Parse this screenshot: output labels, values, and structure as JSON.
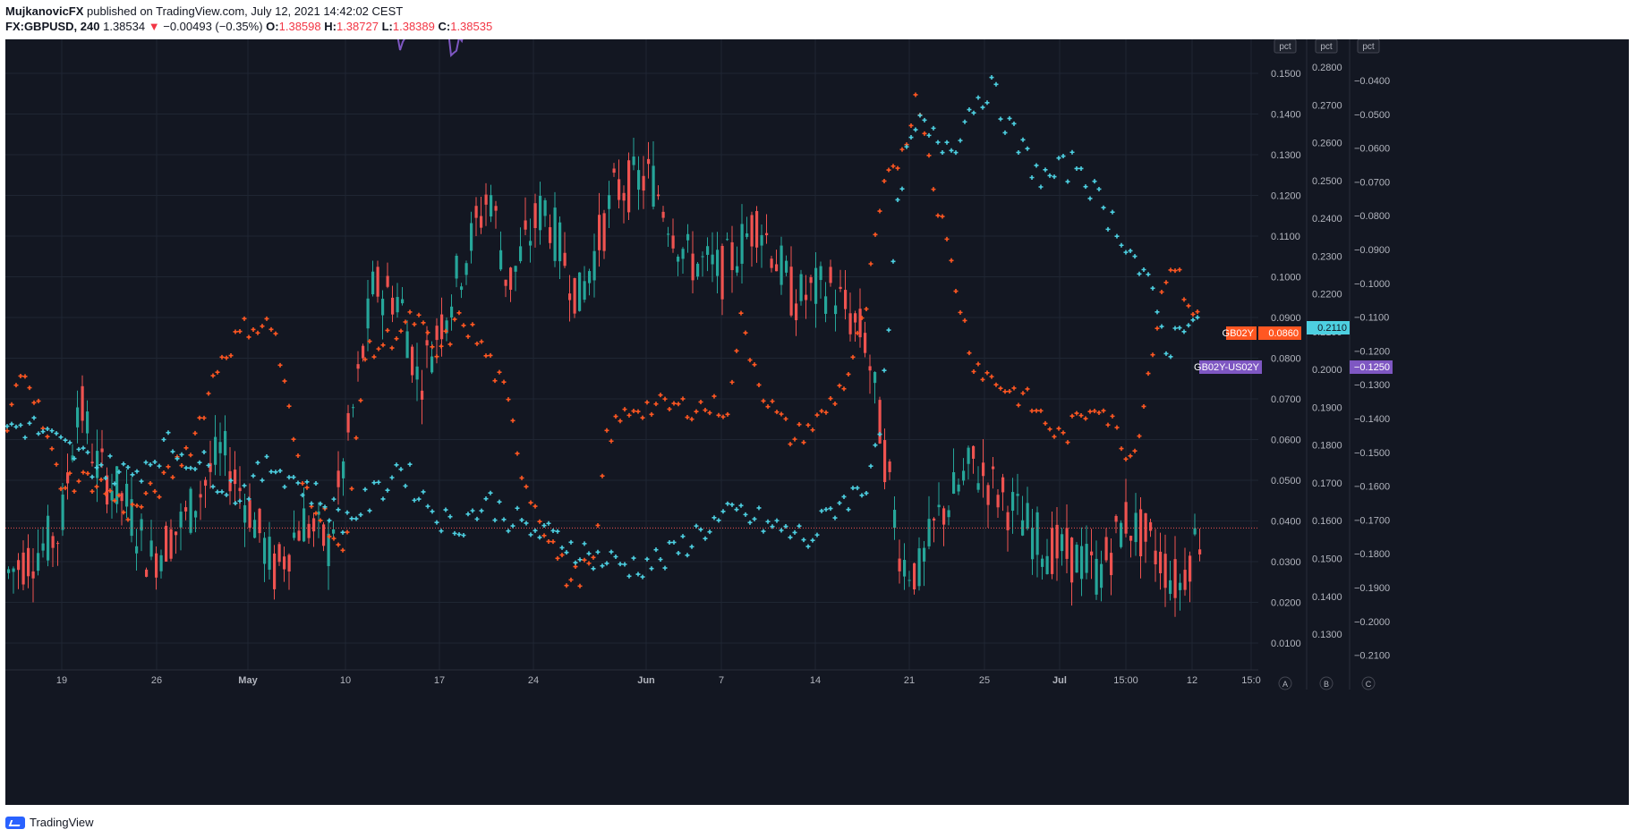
{
  "header": {
    "author": "MujkanovicFX",
    "published": "published on TradingView.com, July 12, 2021 14:42:02 CEST",
    "symbol": "FX:GBPUSD, 240",
    "price": "1.38534",
    "change": "−0.00493 (−0.35%)",
    "open_label": "O:",
    "open": "1.38598",
    "high_label": "H:",
    "high": "1.38727",
    "low_label": "L:",
    "low": "1.38389",
    "close_label": "C:",
    "close": "1.38535"
  },
  "footer": {
    "brand": "TradingView"
  },
  "colors": {
    "background": "#131722",
    "grid": "#1f2633",
    "up": "#26a69a",
    "down": "#ef5350",
    "spread": "#7e57c2",
    "gb": "#ff5722",
    "us": "#4dd0e1",
    "axis_text": "#b2b5be"
  },
  "chart_data": {
    "type": "candlestick",
    "x_ticks": [
      "19",
      "26",
      "May",
      "10",
      "17",
      "24",
      "Jun",
      "7",
      "14",
      "21",
      "25",
      "Jul",
      "15:00",
      "12",
      "15:0"
    ],
    "axis_a": {
      "unit": "pct",
      "ticks": [
        "0.1500",
        "0.1400",
        "0.1300",
        "0.1200",
        "0.1100",
        "0.1000",
        "0.0900",
        "0.0800",
        "0.0700",
        "0.0600",
        "0.0500",
        "0.0400",
        "0.0300",
        "0.0200",
        "0.0100"
      ],
      "corner": "A"
    },
    "axis_b": {
      "unit": "pct",
      "ticks": [
        "0.2800",
        "0.2700",
        "0.2600",
        "0.2500",
        "0.2400",
        "0.2300",
        "0.2200",
        "0.2100",
        "0.2000",
        "0.1900",
        "0.1800",
        "0.1700",
        "0.1600",
        "0.1500",
        "0.1400",
        "0.1300"
      ],
      "corner": "B"
    },
    "axis_c": {
      "unit": "pct",
      "ticks": [
        "−0.0400",
        "−0.0500",
        "−0.0600",
        "−0.0700",
        "−0.0800",
        "−0.0900",
        "−0.1000",
        "−0.1100",
        "−0.1200",
        "−0.1300",
        "−0.1400",
        "−0.1500",
        "−0.1600",
        "−0.1700",
        "−0.1800",
        "−0.1900",
        "−0.2000",
        "−0.2100"
      ],
      "corner": "C"
    },
    "series": [
      {
        "name": "GB02Y",
        "value": "0.0860"
      },
      {
        "name": "US02Y",
        "value": "0.2110"
      },
      {
        "name": "GB02Y-US02Y",
        "value": "−0.1250"
      }
    ],
    "price_line": 1.38535,
    "price_range": [
      1.375,
      1.421
    ],
    "price_anchors": [
      [
        0,
        1.382
      ],
      [
        60,
        1.385
      ],
      [
        80,
        1.395
      ],
      [
        100,
        1.39
      ],
      [
        135,
        1.387
      ],
      [
        160,
        1.383
      ],
      [
        200,
        1.386
      ],
      [
        240,
        1.391
      ],
      [
        270,
        1.387
      ],
      [
        300,
        1.382
      ],
      [
        330,
        1.386
      ],
      [
        360,
        1.384
      ],
      [
        390,
        1.395
      ],
      [
        410,
        1.403
      ],
      [
        440,
        1.402
      ],
      [
        460,
        1.396
      ],
      [
        500,
        1.403
      ],
      [
        540,
        1.41
      ],
      [
        560,
        1.403
      ],
      [
        600,
        1.409
      ],
      [
        640,
        1.402
      ],
      [
        680,
        1.41
      ],
      [
        720,
        1.411
      ],
      [
        760,
        1.405
      ],
      [
        800,
        1.404
      ],
      [
        840,
        1.408
      ],
      [
        880,
        1.402
      ],
      [
        920,
        1.403
      ],
      [
        960,
        1.399
      ],
      [
        980,
        1.391
      ],
      [
        1000,
        1.383
      ],
      [
        1020,
        1.382
      ],
      [
        1040,
        1.386
      ],
      [
        1080,
        1.39
      ],
      [
        1120,
        1.387
      ],
      [
        1160,
        1.384
      ],
      [
        1200,
        1.383
      ],
      [
        1220,
        1.382
      ],
      [
        1250,
        1.386
      ],
      [
        1280,
        1.384
      ],
      [
        1310,
        1.381
      ],
      [
        1330,
        1.385
      ],
      [
        1340,
        1.384
      ]
    ],
    "spread_anchors": [
      [
        0,
        -0.11
      ],
      [
        15,
        -0.08
      ],
      [
        45,
        -0.13
      ],
      [
        60,
        -0.117
      ],
      [
        100,
        -0.11
      ],
      [
        160,
        -0.1
      ],
      [
        230,
        -0.1
      ],
      [
        270,
        -0.055
      ],
      [
        290,
        -0.08
      ],
      [
        300,
        -0.055
      ],
      [
        320,
        -0.1
      ],
      [
        350,
        -0.13
      ],
      [
        380,
        -0.11
      ],
      [
        400,
        -0.09
      ],
      [
        430,
        -0.055
      ],
      [
        440,
        -0.05
      ],
      [
        470,
        -0.07
      ],
      [
        490,
        -0.05
      ],
      [
        520,
        -0.06
      ],
      [
        550,
        -0.08
      ],
      [
        590,
        -0.11
      ],
      [
        620,
        -0.13
      ],
      [
        650,
        -0.09
      ],
      [
        690,
        -0.07
      ],
      [
        720,
        -0.08
      ],
      [
        760,
        -0.085
      ],
      [
        800,
        -0.09
      ],
      [
        820,
        -0.055
      ],
      [
        840,
        -0.08
      ],
      [
        880,
        -0.07
      ],
      [
        930,
        -0.07
      ],
      [
        960,
        -0.09
      ],
      [
        975,
        -0.08
      ],
      [
        990,
        -0.12
      ],
      [
        1010,
        -0.09
      ],
      [
        1040,
        -0.12
      ],
      [
        1060,
        -0.15
      ],
      [
        1080,
        -0.18
      ],
      [
        1100,
        -0.2
      ],
      [
        1140,
        -0.18
      ],
      [
        1170,
        -0.2
      ],
      [
        1200,
        -0.19
      ],
      [
        1230,
        -0.17
      ],
      [
        1260,
        -0.15
      ],
      [
        1280,
        -0.13
      ],
      [
        1300,
        -0.09
      ],
      [
        1320,
        -0.12
      ],
      [
        1340,
        -0.125
      ]
    ],
    "gb_anchors": [
      [
        0,
        0.06
      ],
      [
        20,
        0.08
      ],
      [
        60,
        0.05
      ],
      [
        100,
        0.05
      ],
      [
        140,
        0.042
      ],
      [
        180,
        0.05
      ],
      [
        210,
        0.06
      ],
      [
        240,
        0.08
      ],
      [
        270,
        0.088
      ],
      [
        300,
        0.088
      ],
      [
        330,
        0.05
      ],
      [
        360,
        0.04
      ],
      [
        380,
        0.03
      ],
      [
        400,
        0.08
      ],
      [
        430,
        0.085
      ],
      [
        460,
        0.09
      ],
      [
        480,
        0.08
      ],
      [
        510,
        0.09
      ],
      [
        540,
        0.08
      ],
      [
        560,
        0.07
      ],
      [
        580,
        0.05
      ],
      [
        600,
        0.04
      ],
      [
        630,
        0.025
      ],
      [
        660,
        0.03
      ],
      [
        670,
        0.06
      ],
      [
        700,
        0.068
      ],
      [
        760,
        0.068
      ],
      [
        810,
        0.068
      ],
      [
        820,
        0.09
      ],
      [
        850,
        0.07
      ],
      [
        880,
        0.06
      ],
      [
        910,
        0.065
      ],
      [
        940,
        0.075
      ],
      [
        960,
        0.09
      ],
      [
        980,
        0.12
      ],
      [
        1000,
        0.13
      ],
      [
        1020,
        0.145
      ],
      [
        1040,
        0.12
      ],
      [
        1060,
        0.1
      ],
      [
        1080,
        0.08
      ],
      [
        1100,
        0.075
      ],
      [
        1140,
        0.07
      ],
      [
        1180,
        0.06
      ],
      [
        1220,
        0.07
      ],
      [
        1260,
        0.055
      ],
      [
        1300,
        0.105
      ],
      [
        1320,
        0.095
      ],
      [
        1340,
        0.086
      ]
    ],
    "us_anchors": [
      [
        0,
        0.185
      ],
      [
        30,
        0.185
      ],
      [
        60,
        0.18
      ],
      [
        100,
        0.175
      ],
      [
        140,
        0.172
      ],
      [
        180,
        0.18
      ],
      [
        220,
        0.175
      ],
      [
        260,
        0.167
      ],
      [
        300,
        0.175
      ],
      [
        340,
        0.168
      ],
      [
        380,
        0.16
      ],
      [
        420,
        0.168
      ],
      [
        440,
        0.175
      ],
      [
        470,
        0.165
      ],
      [
        500,
        0.158
      ],
      [
        540,
        0.165
      ],
      [
        580,
        0.158
      ],
      [
        620,
        0.155
      ],
      [
        660,
        0.15
      ],
      [
        700,
        0.148
      ],
      [
        740,
        0.15
      ],
      [
        780,
        0.158
      ],
      [
        820,
        0.162
      ],
      [
        860,
        0.158
      ],
      [
        900,
        0.155
      ],
      [
        930,
        0.165
      ],
      [
        960,
        0.168
      ],
      [
        980,
        0.19
      ],
      [
        1000,
        0.25
      ],
      [
        1020,
        0.265
      ],
      [
        1040,
        0.26
      ],
      [
        1060,
        0.26
      ],
      [
        1080,
        0.27
      ],
      [
        1100,
        0.275
      ],
      [
        1130,
        0.26
      ],
      [
        1160,
        0.25
      ],
      [
        1200,
        0.255
      ],
      [
        1220,
        0.245
      ],
      [
        1250,
        0.235
      ],
      [
        1280,
        0.22
      ],
      [
        1300,
        0.205
      ],
      [
        1320,
        0.215
      ],
      [
        1340,
        0.211
      ]
    ]
  }
}
